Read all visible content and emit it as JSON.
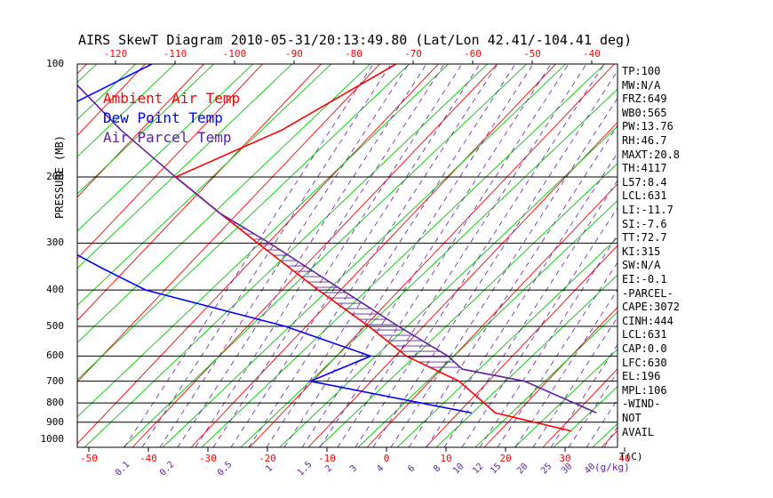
{
  "chart_data": {
    "type": "skewt",
    "title": "AIRS SkewT Diagram 2010-05-31/20:13:49.80 (Lat/Lon 42.41/-104.41 deg)",
    "ylabel": "PRESSURE (MB)",
    "xlabel": "T(C)",
    "mixing_ratio_unit": "(g/kg)",
    "pressure_ticks": [
      100,
      200,
      300,
      400,
      500,
      600,
      700,
      800,
      900,
      1000
    ],
    "bottom_temperature_ticks": [
      -50,
      -40,
      -30,
      -20,
      -10,
      0,
      10,
      20,
      30,
      40
    ],
    "top_temperature_ticks": [
      -120,
      -110,
      -100,
      -90,
      -80,
      -70,
      -60,
      -50,
      -40
    ],
    "mixing_ratio_ticks": [
      "0.1",
      "0.2",
      "0.5",
      "1",
      "1.5",
      "2",
      "3",
      "4",
      "6",
      "8",
      "10",
      "12",
      "15",
      "20",
      "25",
      "30",
      "40"
    ],
    "legend": [
      {
        "name": "Ambient Air Temp",
        "color": "#ff0000"
      },
      {
        "name": "Dew Point Temp",
        "color": "#0000ff"
      },
      {
        "name": "Air Parcel Temp",
        "color": "#6020a0"
      }
    ],
    "series": [
      {
        "name": "Ambient Air Temp",
        "color": "#ff0000",
        "points": [
          [
            100,
            -46
          ],
          [
            150,
            -57
          ],
          [
            200,
            -69
          ],
          [
            250,
            -57
          ],
          [
            300,
            -47
          ],
          [
            400,
            -31
          ],
          [
            500,
            -18
          ],
          [
            600,
            -8
          ],
          [
            700,
            4
          ],
          [
            850,
            14
          ],
          [
            950,
            29
          ]
        ]
      },
      {
        "name": "Dew Point Temp",
        "color": "#0000ff",
        "points": [
          [
            100,
            -87
          ],
          [
            150,
            -101
          ],
          [
            200,
            -96
          ],
          [
            250,
            -82
          ],
          [
            300,
            -81
          ],
          [
            350,
            -70
          ],
          [
            400,
            -60
          ],
          [
            500,
            -32
          ],
          [
            600,
            -14
          ],
          [
            700,
            -21
          ],
          [
            850,
            10
          ]
        ]
      },
      {
        "name": "Air Parcel Temp",
        "color": "#6020a0",
        "points": [
          [
            100,
            -103
          ],
          [
            150,
            -84
          ],
          [
            200,
            -69
          ],
          [
            250,
            -57
          ],
          [
            300,
            -45
          ],
          [
            400,
            -27
          ],
          [
            500,
            -13
          ],
          [
            600,
            -1
          ],
          [
            650,
            3
          ],
          [
            700,
            15
          ],
          [
            850,
            31
          ]
        ]
      }
    ],
    "cape_hatching": {
      "color": "#6020a0",
      "from_mb": 200,
      "to_mb": 650
    }
  },
  "indices": [
    "TP:100",
    "MW:N/A",
    "FRZ:649",
    "WB0:565",
    "PW:13.76",
    "RH:46.7",
    "MAXT:20.8",
    "TH:4117",
    "L57:8.4",
    "LCL:631",
    "LI:-11.7",
    "SI:-7.6",
    "TT:72.7",
    "KI:315",
    "SW:N/A",
    "EI:-0.1",
    "-PARCEL-",
    "CAPE:3072",
    "CINH:444",
    "LCL:631",
    "CAP:0.0",
    "LFC:630",
    "EL:196",
    "MPL:106",
    "-WIND-",
    "NOT",
    "AVAIL"
  ],
  "colors": {
    "dry_adiabat": "#ff0000",
    "moist_adiabat": "#00c800",
    "mixing_ratio": "#6020a0",
    "isobar": "#000000"
  }
}
